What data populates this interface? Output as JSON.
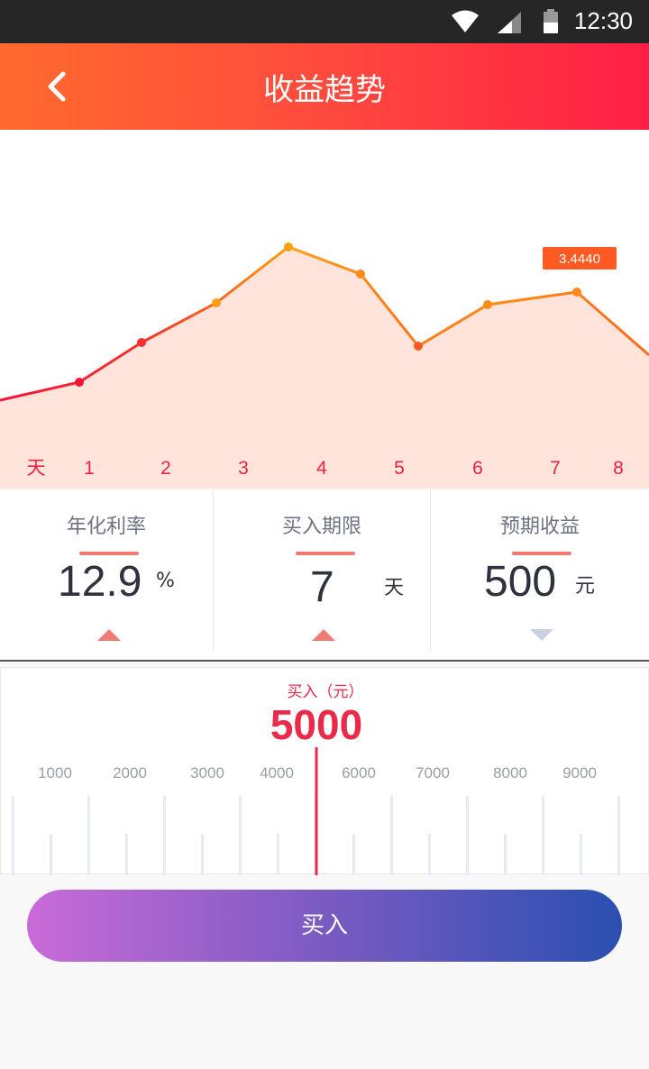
{
  "status_bar": {
    "time": "12:30",
    "icons": [
      "wifi-icon",
      "cell-signal-icon",
      "battery-icon"
    ]
  },
  "app_bar": {
    "title": "收益趋势",
    "back_icon": "chevron-left-icon"
  },
  "chart_data": {
    "type": "area",
    "x_prefix_label": "天",
    "categories": [
      "1",
      "2",
      "3",
      "4",
      "5",
      "6",
      "7",
      "8"
    ],
    "values": [
      3.3,
      3.52,
      3.74,
      4.05,
      3.9,
      3.55,
      3.73,
      3.78,
      3.53
    ],
    "x": [
      0,
      1,
      2,
      3,
      4,
      5,
      6,
      7,
      8
    ],
    "highlight_label": "3.4440",
    "colors": {
      "line_start": "#f5153a",
      "line_mid": "#ffa010",
      "fill": "#ffe4dc",
      "highlight_bg": "#ff5a22"
    }
  },
  "stats": [
    {
      "label": "年化利率",
      "value": "12.9",
      "unit": "%",
      "arrow": "up"
    },
    {
      "label": "买入期限",
      "value": "7",
      "unit": "天",
      "arrow": "up"
    },
    {
      "label": "预期收益",
      "value": "500",
      "unit": "元",
      "arrow": "down"
    }
  ],
  "ruler": {
    "label": "买入（元）",
    "value": "5000",
    "tick_labels": [
      "1000",
      "2000",
      "3000",
      "4000",
      "6000",
      "7000",
      "8000",
      "9000"
    ],
    "accent": "#ea2a4a"
  },
  "buy_button": {
    "label": "买入"
  }
}
